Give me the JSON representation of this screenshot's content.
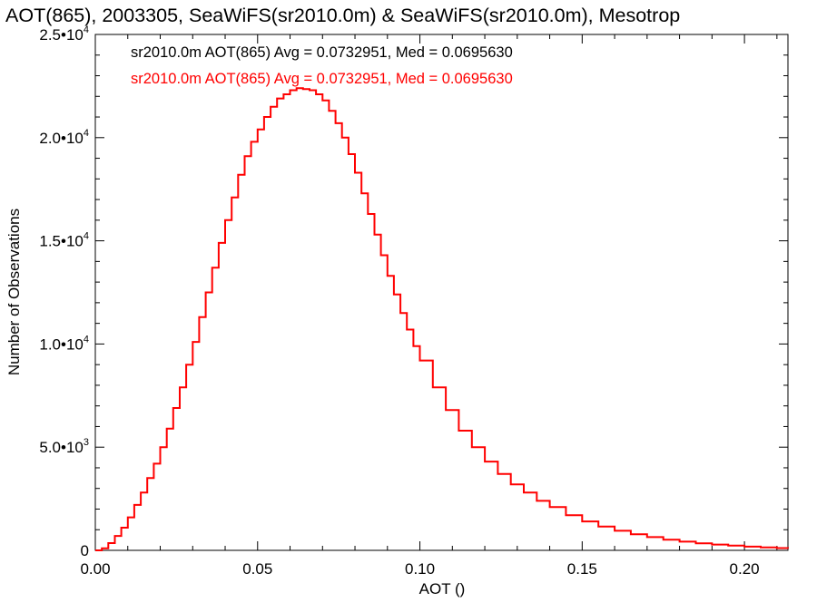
{
  "chart_data": {
    "type": "line",
    "title": "AOT(865), 2003305, SeaWiFS(sr2010.0m) & SeaWiFS(sr2010.0m), Mesotrop",
    "xlabel": "AOT ()",
    "ylabel": "Number of Observations",
    "xlim": [
      0.0,
      0.2134
    ],
    "ylim": [
      0,
      25000
    ],
    "x_ticks": [
      {
        "value": 0.0,
        "label": "0.00"
      },
      {
        "value": 0.05,
        "label": "0.05"
      },
      {
        "value": 0.1,
        "label": "0.10"
      },
      {
        "value": 0.15,
        "label": "0.15"
      },
      {
        "value": 0.2,
        "label": "0.20"
      }
    ],
    "y_ticks": [
      {
        "value": 0,
        "mantissa": "0",
        "exponent": ""
      },
      {
        "value": 5000,
        "mantissa": "5.0•10",
        "exponent": "3"
      },
      {
        "value": 10000,
        "mantissa": "1.0•10",
        "exponent": "4"
      },
      {
        "value": 15000,
        "mantissa": "1.5•10",
        "exponent": "4"
      },
      {
        "value": 20000,
        "mantissa": "2.0•10",
        "exponent": "4"
      },
      {
        "value": 25000,
        "mantissa": "2.5•10",
        "exponent": "4"
      }
    ],
    "legend": [
      {
        "text": "sr2010.0m AOT(865) Avg = 0.0732951, Med = 0.0695630",
        "color": "#000000"
      },
      {
        "text": "sr2010.0m AOT(865) Avg = 0.0732951, Med = 0.0695630",
        "color": "#ff0000"
      }
    ],
    "legend_placement": "top-left",
    "grid": false,
    "series": [
      {
        "color": "#ff0000",
        "draw_style": "histogram-step",
        "x": [
          0.0,
          0.002,
          0.004,
          0.006,
          0.008,
          0.01,
          0.012,
          0.014,
          0.016,
          0.018,
          0.02,
          0.022,
          0.024,
          0.026,
          0.028,
          0.03,
          0.032,
          0.034,
          0.036,
          0.038,
          0.04,
          0.042,
          0.044,
          0.046,
          0.048,
          0.05,
          0.052,
          0.054,
          0.056,
          0.058,
          0.06,
          0.062,
          0.064,
          0.066,
          0.068,
          0.07,
          0.072,
          0.074,
          0.076,
          0.078,
          0.08,
          0.082,
          0.084,
          0.086,
          0.088,
          0.09,
          0.092,
          0.094,
          0.096,
          0.098,
          0.1,
          0.104,
          0.108,
          0.112,
          0.116,
          0.12,
          0.124,
          0.128,
          0.132,
          0.136,
          0.14,
          0.145,
          0.15,
          0.155,
          0.16,
          0.165,
          0.17,
          0.175,
          0.18,
          0.185,
          0.19,
          0.195,
          0.2,
          0.205,
          0.21,
          0.2134
        ],
        "values": [
          0,
          100,
          350,
          700,
          1100,
          1600,
          2200,
          2800,
          3500,
          4200,
          5000,
          5900,
          6900,
          7900,
          9000,
          10100,
          11300,
          12500,
          13700,
          14900,
          16000,
          17100,
          18200,
          19100,
          19800,
          20400,
          21000,
          21500,
          21900,
          22100,
          22300,
          22400,
          22350,
          22300,
          22100,
          21800,
          21300,
          20700,
          20000,
          19200,
          18300,
          17300,
          16300,
          15300,
          14300,
          13300,
          12400,
          11500,
          10700,
          9900,
          9200,
          7900,
          6800,
          5800,
          5000,
          4300,
          3700,
          3200,
          2800,
          2400,
          2100,
          1700,
          1400,
          1150,
          950,
          780,
          640,
          520,
          420,
          340,
          280,
          230,
          180,
          140,
          110,
          90
        ]
      }
    ]
  }
}
